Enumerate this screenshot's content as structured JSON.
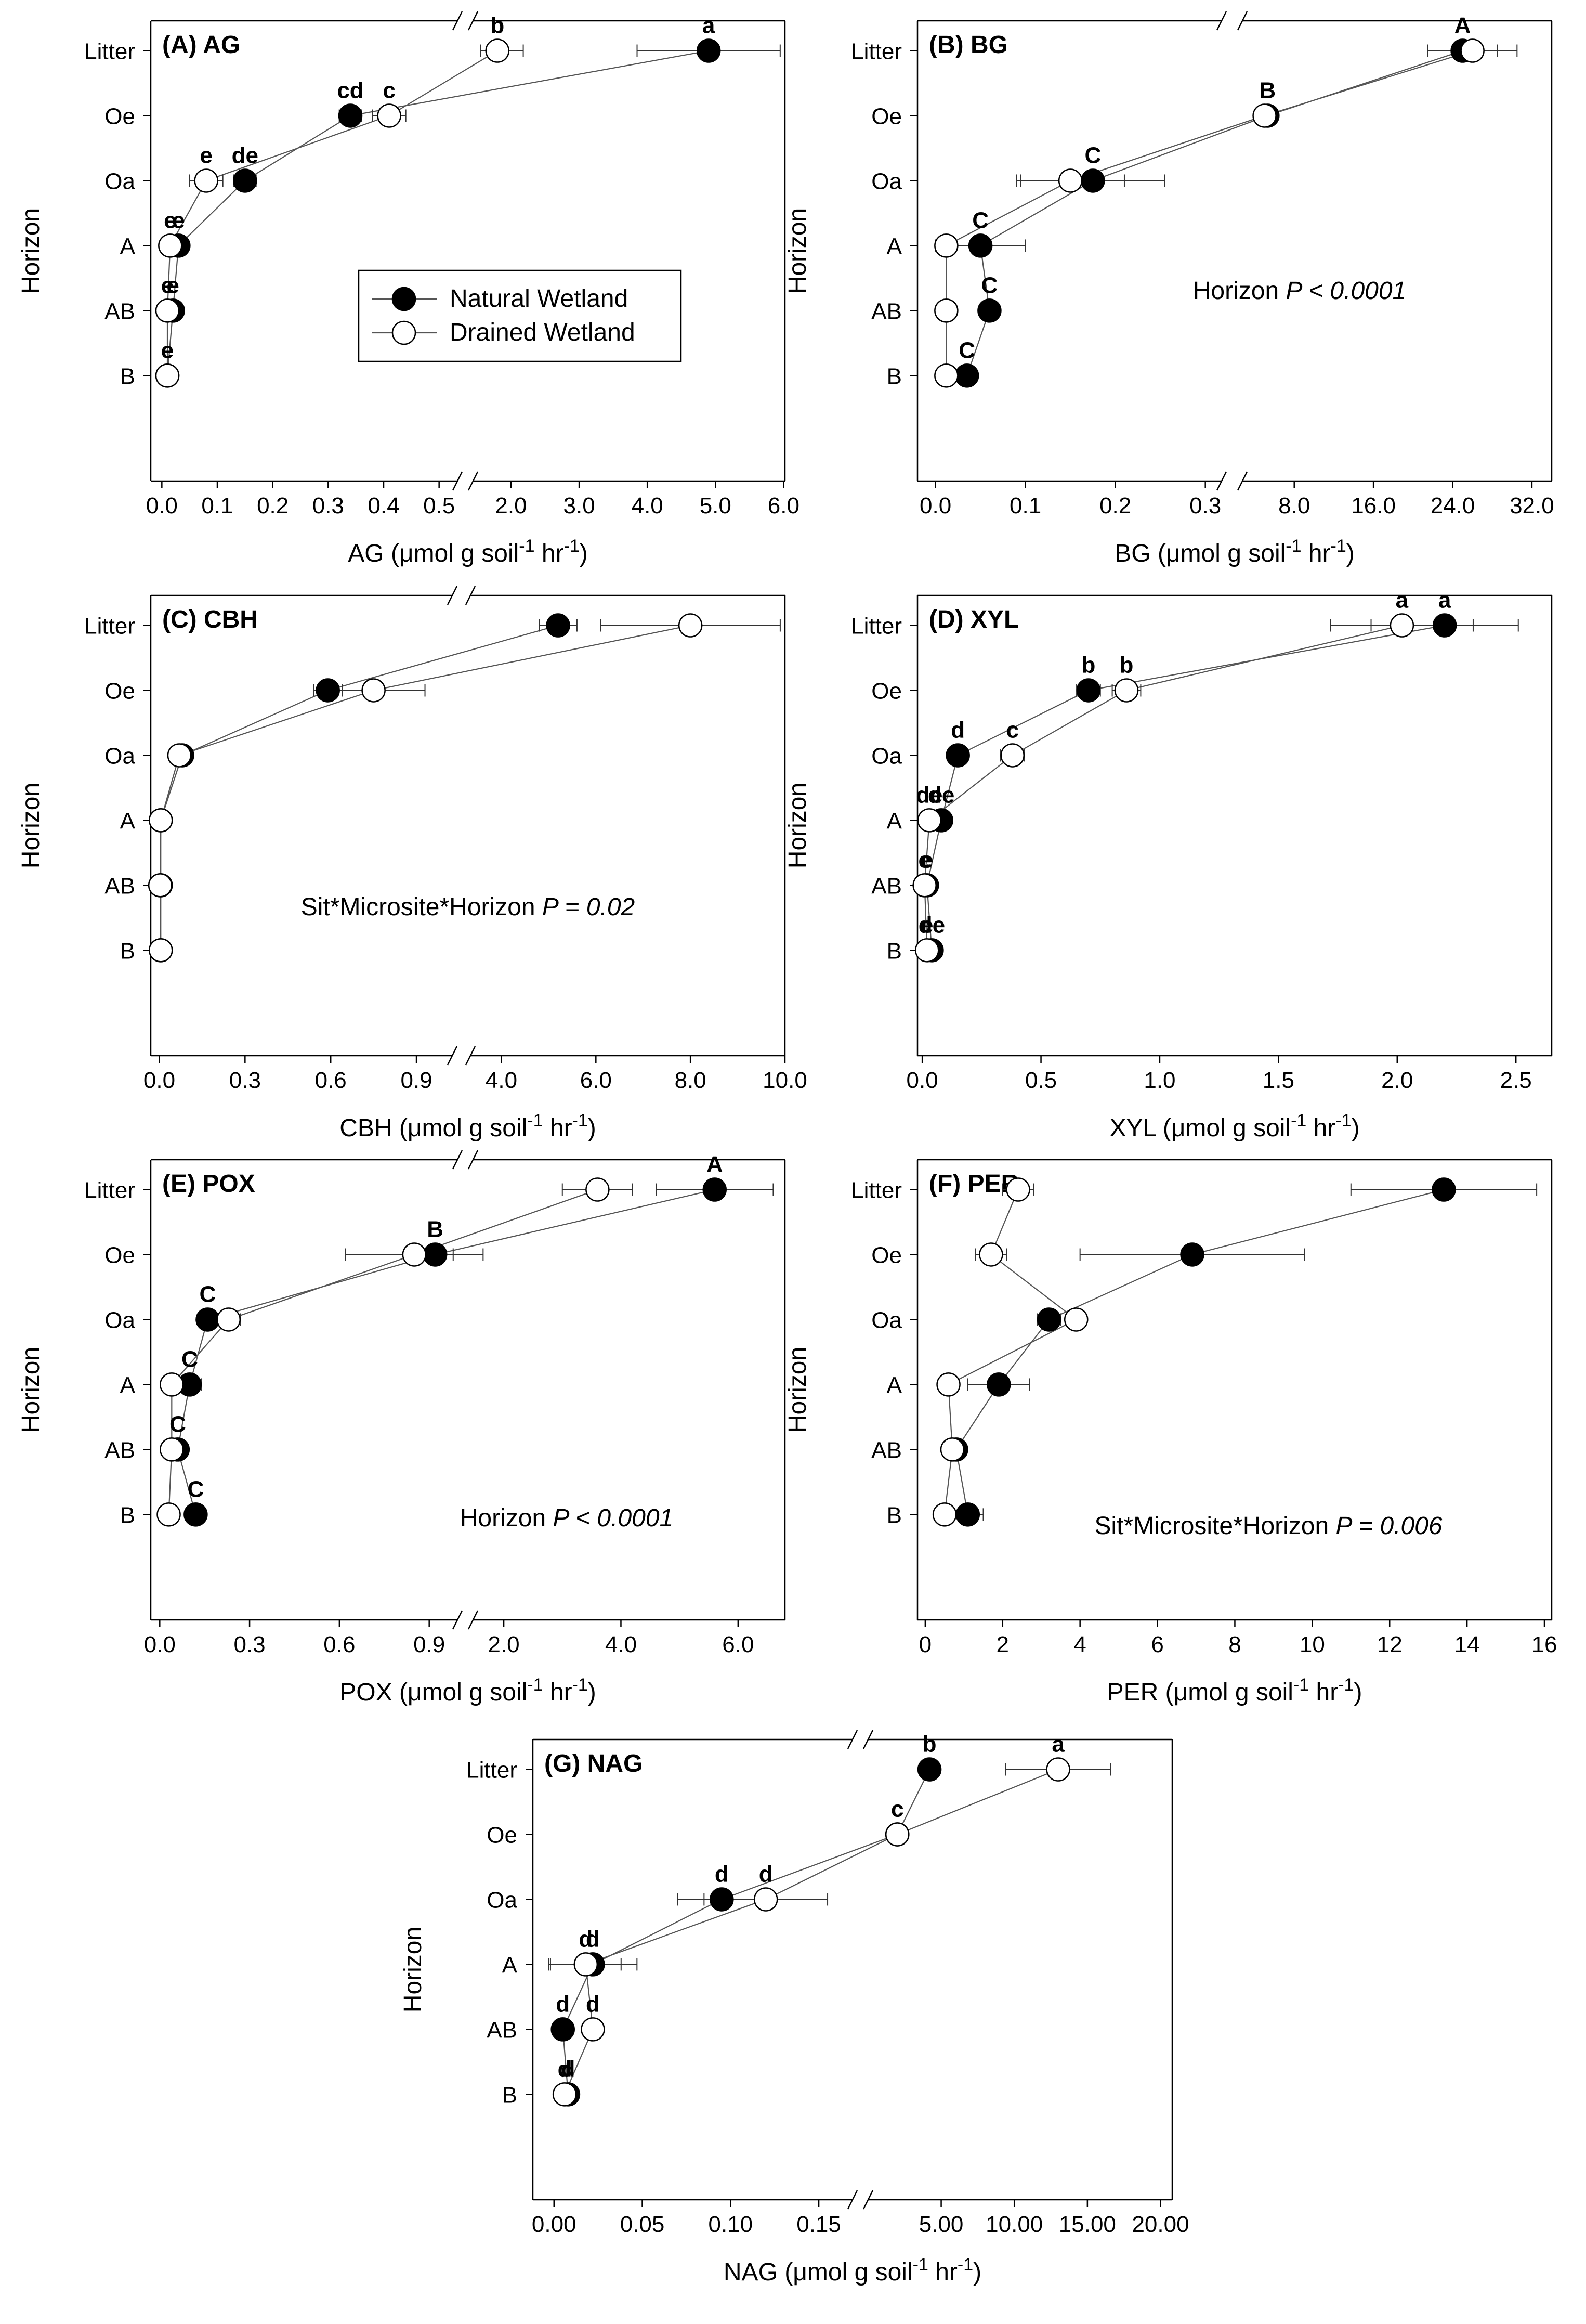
{
  "legend": {
    "natural": "Natural Wetland",
    "drained": "Drained Wetland"
  },
  "colors": {
    "natural": "#000000",
    "drained": "#ffffff",
    "line": "#555555",
    "frame": "#000000"
  },
  "chart_data": [
    {
      "id": "A",
      "type": "scatter",
      "title": "(A) AG",
      "xlabel": "AG (μmol g soil",
      "xlabel_sup": "-1",
      "xlabel_mid": " hr",
      "xlabel_sup2": "-1",
      "xlabel_end": ")",
      "ylabel": "Horizon",
      "categories": [
        "Litter",
        "Oe",
        "Oa",
        "A",
        "AB",
        "B"
      ],
      "segments": [
        {
          "range": [
            -0.02,
            0.52
          ],
          "ticks": [
            "0.0",
            "0.1",
            "0.2",
            "0.3",
            "0.4",
            "0.5"
          ]
        },
        {
          "range": [
            1.55,
            6.02
          ],
          "ticks": [
            "2.0",
            "3.0",
            "4.0",
            "5.0",
            "6.0"
          ]
        }
      ],
      "series": [
        {
          "name": "Natural Wetland",
          "values": [
            4.9,
            0.34,
            0.15,
            0.03,
            0.02,
            0.01
          ],
          "err": [
            1.05,
            0.02,
            0.02,
            0.01,
            0.01,
            0.005
          ],
          "labels": [
            "a",
            "cd",
            "de",
            "e",
            "e",
            "e"
          ]
        },
        {
          "name": "Drained Wetland",
          "values": [
            1.8,
            0.41,
            0.08,
            0.015,
            0.01,
            0.01
          ],
          "err": [
            0.38,
            0.03,
            0.03,
            0.01,
            0.005,
            0.005
          ],
          "labels": [
            "b",
            "c",
            "e",
            "e",
            "e",
            "e"
          ]
        }
      ],
      "stat": null,
      "legend_position": "center"
    },
    {
      "id": "B",
      "type": "scatter",
      "title": "(B) BG",
      "xlabel": "BG (μmol g soil",
      "xlabel_sup": "-1",
      "xlabel_mid": " hr",
      "xlabel_sup2": "-1",
      "xlabel_end": ")",
      "ylabel": "Horizon",
      "categories": [
        "Litter",
        "Oe",
        "Oa",
        "A",
        "AB",
        "B"
      ],
      "segments": [
        {
          "range": [
            -0.02,
            0.31
          ],
          "ticks": [
            "0.0",
            "0.1",
            "0.2",
            "0.3"
          ]
        },
        {
          "range": [
            3.5,
            34
          ],
          "ticks": [
            "8.0",
            "16.0",
            "24.0",
            "32.0"
          ]
        }
      ],
      "series": [
        {
          "name": "Natural Wetland",
          "values": [
            25.0,
            5.3,
            0.175,
            0.05,
            0.06,
            0.035
          ],
          "err": [
            3.5,
            0.3,
            0.08,
            0.05,
            0.01,
            0.008
          ],
          "labels": [
            "A",
            "B",
            "C",
            "C",
            "C",
            "C"
          ]
        },
        {
          "name": "Drained Wetland",
          "values": [
            26.0,
            5.0,
            0.15,
            0.012,
            0.012,
            0.012
          ],
          "err": [
            4.5,
            0.3,
            0.06,
            0.008,
            0.005,
            0.005
          ],
          "labels": [
            "",
            "",
            "",
            "",
            "",
            ""
          ]
        }
      ],
      "stat": {
        "text": "Horizon ",
        "italic": "P < 0.0001"
      },
      "legend_position": "none"
    },
    {
      "id": "C",
      "type": "scatter",
      "title": "(C) CBH",
      "xlabel": "CBH (μmol g soil",
      "xlabel_sup": "-1",
      "xlabel_mid": " hr",
      "xlabel_sup2": "-1",
      "xlabel_end": ")",
      "ylabel": "Horizon",
      "categories": [
        "Litter",
        "Oe",
        "Oa",
        "A",
        "AB",
        "B"
      ],
      "segments": [
        {
          "range": [
            -0.03,
            1.0
          ],
          "ticks": [
            "0.0",
            "0.3",
            "0.6",
            "0.9"
          ]
        },
        {
          "range": [
            3.5,
            10.0
          ],
          "ticks": [
            "4.0",
            "6.0",
            "8.0",
            "10.0"
          ]
        }
      ],
      "series": [
        {
          "name": "Natural Wetland",
          "values": [
            5.2,
            0.59,
            0.08,
            0.005,
            0.005,
            0.005
          ],
          "err": [
            0.4,
            0.05,
            0.01,
            0.003,
            0.003,
            0.003
          ],
          "labels": [
            "",
            "",
            "",
            "",
            "",
            ""
          ]
        },
        {
          "name": "Drained Wetland",
          "values": [
            8.0,
            0.75,
            0.07,
            0.005,
            0.003,
            0.005
          ],
          "err": [
            1.9,
            0.18,
            0.01,
            0.003,
            0.003,
            0.003
          ],
          "labels": [
            "",
            "",
            "",
            "",
            "",
            ""
          ]
        }
      ],
      "stat": {
        "text": "Sit*Microsite*Horizon ",
        "italic": "P = 0.02"
      },
      "legend_position": "none"
    },
    {
      "id": "D",
      "type": "scatter",
      "title": "(D) XYL",
      "xlabel": "XYL (μmol g soil",
      "xlabel_sup": "-1",
      "xlabel_mid": " hr",
      "xlabel_sup2": "-1",
      "xlabel_end": ")",
      "ylabel": "Horizon",
      "categories": [
        "Litter",
        "Oe",
        "Oa",
        "A",
        "AB",
        "B"
      ],
      "segments": [
        {
          "range": [
            -0.02,
            2.62
          ],
          "ticks": [
            "0.0",
            "0.5",
            "1.0",
            "1.5",
            "2.0",
            "2.5"
          ]
        }
      ],
      "series": [
        {
          "name": "Natural Wetland",
          "values": [
            2.2,
            0.7,
            0.15,
            0.08,
            0.02,
            0.04
          ],
          "err": [
            0.31,
            0.05,
            0.02,
            0.02,
            0.01,
            0.01
          ],
          "labels": [
            "a",
            "b",
            "d",
            "de",
            "e",
            "de"
          ]
        },
        {
          "name": "Drained Wetland",
          "values": [
            2.02,
            0.86,
            0.38,
            0.03,
            0.01,
            0.02
          ],
          "err": [
            0.3,
            0.06,
            0.05,
            0.02,
            0.01,
            0.01
          ],
          "labels": [
            "a",
            "b",
            "c",
            "de",
            "e",
            "e"
          ]
        }
      ],
      "stat": null,
      "legend_position": "none"
    },
    {
      "id": "E",
      "type": "scatter",
      "title": "(E) POX",
      "xlabel": "POX (μmol g soil",
      "xlabel_sup": "-1",
      "xlabel_mid": " hr",
      "xlabel_sup2": "-1",
      "xlabel_end": ")",
      "ylabel": "Horizon",
      "categories": [
        "Litter",
        "Oe",
        "Oa",
        "A",
        "AB",
        "B"
      ],
      "segments": [
        {
          "range": [
            -0.03,
            0.97
          ],
          "ticks": [
            "0.0",
            "0.3",
            "0.6",
            "0.9"
          ]
        },
        {
          "range": [
            1.6,
            6.8
          ],
          "ticks": [
            "2.0",
            "4.0",
            "6.0"
          ]
        }
      ],
      "series": [
        {
          "name": "Natural Wetland",
          "values": [
            5.6,
            0.92,
            0.16,
            0.1,
            0.06,
            0.12
          ],
          "err": [
            1.0,
            0.06,
            0.03,
            0.04,
            0.01,
            0.01
          ],
          "labels": [
            "A",
            "B",
            "C",
            "C",
            "C",
            "C"
          ]
        },
        {
          "name": "Drained Wetland",
          "values": [
            3.6,
            0.85,
            0.23,
            0.04,
            0.04,
            0.03
          ],
          "err": [
            0.6,
            0.23,
            0.04,
            0.01,
            0.01,
            0.01
          ],
          "labels": [
            "",
            "",
            "",
            "",
            "",
            ""
          ]
        }
      ],
      "stat": {
        "text": "Horizon ",
        "italic": "P < 0.0001"
      },
      "legend_position": "none"
    },
    {
      "id": "F",
      "type": "scatter",
      "title": "(F) PER",
      "xlabel": "PER (μmol g soil",
      "xlabel_sup": "-1",
      "xlabel_mid": " hr",
      "xlabel_sup2": "-1",
      "xlabel_end": ")",
      "ylabel": "Horizon",
      "categories": [
        "Litter",
        "Oe",
        "Oa",
        "A",
        "AB",
        "B"
      ],
      "segments": [
        {
          "range": [
            -0.2,
            16.0
          ],
          "ticks": [
            "0",
            "2",
            "4",
            "6",
            "8",
            "10",
            "12",
            "14",
            "16"
          ]
        }
      ],
      "series": [
        {
          "name": "Natural Wetland",
          "values": [
            13.4,
            6.9,
            3.2,
            1.9,
            0.8,
            1.1
          ],
          "err": [
            2.4,
            2.9,
            0.3,
            0.8,
            0.1,
            0.4
          ],
          "labels": [
            "",
            "",
            "",
            "",
            "",
            ""
          ]
        },
        {
          "name": "Drained Wetland",
          "values": [
            2.4,
            1.7,
            3.9,
            0.6,
            0.7,
            0.5
          ],
          "err": [
            0.4,
            0.4,
            0.2,
            0.1,
            0.2,
            0.1
          ],
          "labels": [
            "",
            "",
            "",
            "",
            "",
            ""
          ]
        }
      ],
      "stat": {
        "text": "Sit*Microsite*Horizon ",
        "italic": "P = 0.006"
      },
      "legend_position": "none"
    },
    {
      "id": "G",
      "type": "scatter",
      "title": "(G) NAG",
      "xlabel": "NAG (μmol g soil",
      "xlabel_sup": "-1",
      "xlabel_mid": " hr",
      "xlabel_sup2": "-1",
      "xlabel_end": ")",
      "ylabel": "Horizon",
      "categories": [
        "Litter",
        "Oe",
        "Oa",
        "A",
        "AB",
        "B"
      ],
      "segments": [
        {
          "range": [
            -0.012,
            0.165
          ],
          "ticks": [
            "0.00",
            "0.05",
            "0.10",
            "0.15"
          ]
        },
        {
          "range": [
            0.5,
            20.8
          ],
          "ticks": [
            "5.00",
            "10.00",
            "15.00",
            "20.00"
          ]
        }
      ],
      "series": [
        {
          "name": "Natural Wetland",
          "values": [
            4.2,
            2.0,
            0.095,
            0.022,
            0.005,
            0.008
          ],
          "err": [
            0.7,
            0.2,
            0.025,
            0.025,
            0.003,
            0.003
          ],
          "labels": [
            "b",
            "c",
            "d",
            "d",
            "d",
            "d"
          ]
        },
        {
          "name": "Drained Wetland",
          "values": [
            13.0,
            2.0,
            0.12,
            0.018,
            0.022,
            0.006
          ],
          "err": [
            3.6,
            0.3,
            0.035,
            0.02,
            0.004,
            0.003
          ],
          "labels": [
            "a",
            "c",
            "d",
            "d",
            "d",
            "d"
          ]
        }
      ],
      "stat": null,
      "legend_position": "none"
    }
  ]
}
